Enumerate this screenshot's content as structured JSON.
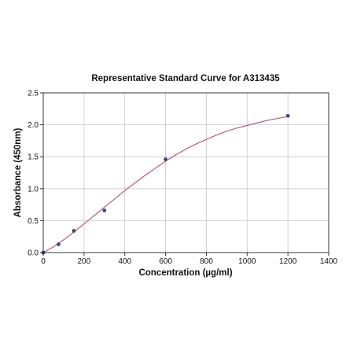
{
  "chart_data": {
    "type": "scatter",
    "title": "Representative Standard Curve for A313435",
    "xlabel": "Concentration (µg/ml)",
    "ylabel": "Absorbance (450nm)",
    "xlim": [
      0,
      1400
    ],
    "ylim": [
      0,
      2.5
    ],
    "xticks": [
      0,
      200,
      400,
      600,
      800,
      1000,
      1200,
      1400
    ],
    "yticks": [
      0.0,
      0.5,
      1.0,
      1.5,
      2.0,
      2.5
    ],
    "xtick_labels": [
      "0",
      "200",
      "400",
      "600",
      "800",
      "1000",
      "1200",
      "1400"
    ],
    "ytick_labels": [
      "0.0",
      "0.5",
      "1.0",
      "1.5",
      "2.0",
      "2.5"
    ],
    "grid": true,
    "series": [
      {
        "points": [
          {
            "x": 0,
            "y": 0.0
          },
          {
            "x": 75,
            "y": 0.13
          },
          {
            "x": 150,
            "y": 0.34
          },
          {
            "x": 300,
            "y": 0.66
          },
          {
            "x": 600,
            "y": 1.46
          },
          {
            "x": 1200,
            "y": 2.14
          }
        ],
        "marker_color": "#3b4a7a"
      }
    ],
    "fit_curve": {
      "x": [
        0,
        50,
        100,
        150,
        200,
        250,
        300,
        350,
        400,
        450,
        500,
        550,
        600,
        650,
        700,
        750,
        800,
        850,
        900,
        950,
        1000,
        1050,
        1100,
        1150,
        1200
      ],
      "y": [
        0.0,
        0.09,
        0.2,
        0.32,
        0.45,
        0.58,
        0.71,
        0.84,
        0.97,
        1.09,
        1.21,
        1.32,
        1.43,
        1.53,
        1.62,
        1.7,
        1.77,
        1.84,
        1.9,
        1.95,
        1.99,
        2.03,
        2.07,
        2.1,
        2.13
      ],
      "color": "#b5536a"
    }
  }
}
